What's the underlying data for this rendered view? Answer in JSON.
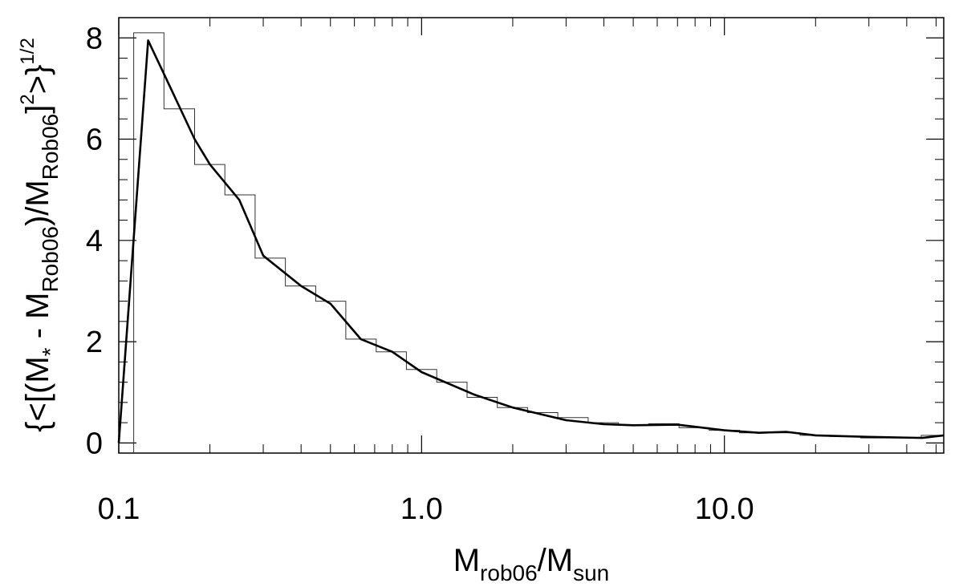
{
  "chart_data": {
    "type": "line",
    "title": "",
    "xlabel": {
      "main": "M",
      "sub": "rob06",
      "sep": "/M",
      "sub2": "sun"
    },
    "ylabel": {
      "parts": [
        {
          "t": "{<[(M"
        },
        {
          "t": "*",
          "shift": "sub"
        },
        {
          "t": " - M"
        },
        {
          "t": "Rob06",
          "shift": "sub"
        },
        {
          "t": ")/M"
        },
        {
          "t": "Rob06",
          "shift": "sub"
        },
        {
          "t": "]"
        },
        {
          "t": "2",
          "shift": "sup"
        },
        {
          "t": ">}"
        },
        {
          "t": "1/2",
          "shift": "sup"
        }
      ]
    },
    "x_scale": "log",
    "xlim": [
      0.1,
      53
    ],
    "ylim": [
      -0.2,
      8.4
    ],
    "grid": false,
    "x_ticks": [
      {
        "value": 0.1,
        "label": "0.1"
      },
      {
        "value": 1.0,
        "label": "1.0"
      },
      {
        "value": 10.0,
        "label": "10.0"
      }
    ],
    "y_ticks": [
      {
        "value": 0,
        "label": "0"
      },
      {
        "value": 2,
        "label": "2"
      },
      {
        "value": 4,
        "label": "4"
      },
      {
        "value": 6,
        "label": "6"
      },
      {
        "value": 8,
        "label": "8"
      }
    ],
    "y_minor_step": 0.4,
    "histogram": {
      "edges": [
        0.112,
        0.141,
        0.178,
        0.224,
        0.282,
        0.355,
        0.447,
        0.562,
        0.708,
        0.891,
        1.122,
        1.413,
        1.778,
        2.239,
        2.818,
        3.548,
        4.467,
        5.623,
        7.079,
        8.913,
        11.22,
        14.13,
        17.78,
        22.39,
        28.18,
        35.48,
        44.67,
        53.0
      ],
      "values": [
        8.1,
        6.6,
        5.5,
        4.9,
        3.65,
        3.1,
        2.8,
        2.05,
        1.8,
        1.45,
        1.2,
        0.9,
        0.7,
        0.6,
        0.5,
        0.4,
        0.35,
        0.38,
        0.3,
        0.25,
        0.2,
        0.2,
        0.15,
        0.13,
        0.1,
        0.1,
        0.15
      ]
    },
    "series": [
      {
        "x": [
          0.1,
          0.125,
          0.15,
          0.178,
          0.2,
          0.25,
          0.3,
          0.4,
          0.5,
          0.63,
          0.8,
          1.0,
          1.5,
          2.0,
          3.0,
          4.0,
          5.0,
          7.0,
          8.0,
          10.0,
          13.0,
          16.0,
          20.0,
          30.0,
          45.0,
          53.0
        ],
        "y": [
          0.0,
          7.95,
          6.95,
          6.0,
          5.5,
          4.8,
          3.7,
          3.1,
          2.75,
          2.05,
          1.8,
          1.4,
          0.95,
          0.7,
          0.45,
          0.37,
          0.35,
          0.36,
          0.32,
          0.25,
          0.2,
          0.22,
          0.15,
          0.12,
          0.1,
          0.15
        ]
      }
    ]
  }
}
